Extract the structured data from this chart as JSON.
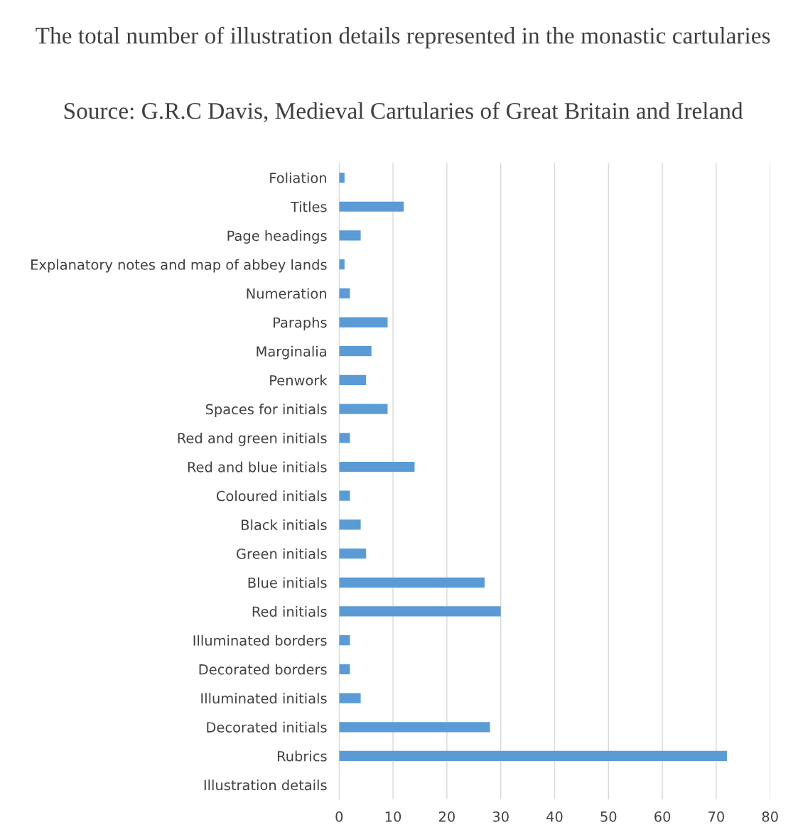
{
  "chart_data": {
    "type": "bar",
    "orientation": "horizontal",
    "title": "The total number of illustration details represented in the monastic cartularies",
    "subtitle": "Source: G.R.C Davis, Medieval Cartularies of Great Britain and Ireland",
    "categories": [
      "Foliation",
      "Titles",
      "Page headings",
      "Explanatory notes and map of abbey lands",
      "Numeration",
      "Paraphs",
      "Marginalia",
      "Penwork",
      "Spaces for initials",
      "Red and green initials",
      "Red and blue initials",
      "Coloured initials",
      "Black initials",
      "Green initials",
      "Blue initials",
      "Red initials",
      "Illuminated borders",
      "Decorated borders",
      "Illuminated initials",
      "Decorated initials",
      "Rubrics",
      "Illustration details"
    ],
    "values": [
      1,
      12,
      4,
      1,
      2,
      9,
      6,
      5,
      9,
      2,
      14,
      2,
      4,
      5,
      27,
      30,
      2,
      2,
      4,
      28,
      72,
      null
    ],
    "color": "#5b9bd5",
    "xlim": [
      0,
      80
    ],
    "xticks": [
      0,
      10,
      20,
      30,
      40,
      50,
      60,
      70,
      80
    ],
    "grid": "x"
  }
}
